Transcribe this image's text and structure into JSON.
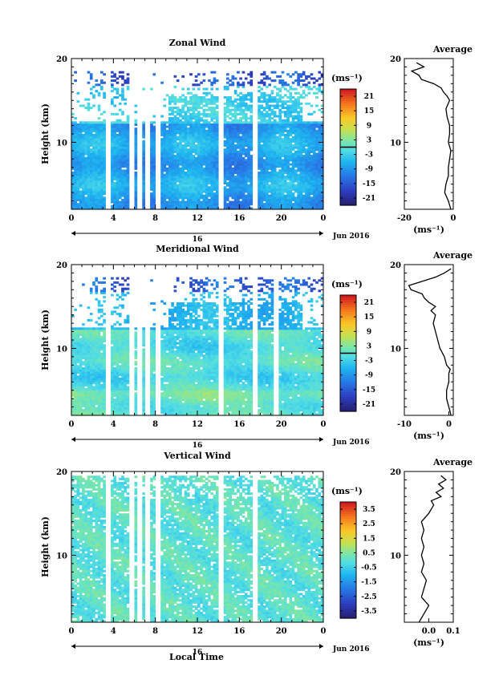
{
  "figure": {
    "x_label": "Local Time",
    "date_label": "Jun 2016",
    "date_day": "16",
    "unit_label": "(ms⁻¹)",
    "average_title": "Average",
    "average_unit": "(ms⁻¹)"
  },
  "chart_data": [
    {
      "type": "heatmap",
      "id": "zonal",
      "title": "Zonal Wind",
      "ylabel": "Height (km)",
      "x_ticks": [
        "0",
        "4",
        "8",
        "12",
        "16",
        "20",
        "0"
      ],
      "y_ticks": [
        "20",
        "10"
      ],
      "xlim": [
        0,
        24
      ],
      "ylim": [
        2,
        20
      ],
      "data_top_km": 18.5,
      "data_bottom_km": 2,
      "gaps_hours": [
        3.4,
        5.7,
        6.6,
        7.3,
        8.3,
        14.3,
        17.6
      ],
      "colorbar": {
        "min": -24,
        "max": 24,
        "tick_values": [
          21,
          15,
          9,
          3,
          -3,
          -9,
          -15,
          -21
        ],
        "tick_labels": [
          "21",
          "15",
          "9",
          "3",
          "-3",
          "-9",
          "-15",
          "-21"
        ],
        "zero_line": 0
      },
      "profile": {
        "xlim": [
          -20,
          0
        ],
        "x_tick_values": [
          -20,
          0
        ],
        "x_tick_labels": [
          "-20",
          "0"
        ],
        "y_ticks": [
          "20",
          "10"
        ],
        "height_km": [
          2.0,
          3.0,
          4.0,
          5.0,
          6.0,
          7.0,
          8.0,
          9.0,
          10.0,
          11.0,
          12.0,
          13.0,
          14.0,
          15.0,
          15.5,
          16.0,
          16.5,
          17.0,
          17.5,
          18.0,
          18.5,
          19.0,
          19.5
        ],
        "values": [
          -1.0,
          -2.0,
          -3.5,
          -3.0,
          -2.0,
          -2.0,
          -1.5,
          -1.0,
          -2.0,
          -1.5,
          -1.5,
          -2.5,
          -3.0,
          -1.5,
          -2.5,
          -4.0,
          -5.0,
          -8.0,
          -13.0,
          -14.0,
          -17.0,
          -12.0,
          -15.0
        ]
      }
    },
    {
      "type": "heatmap",
      "id": "meridional",
      "title": "Meridional Wind",
      "ylabel": "Height (km)",
      "x_ticks": [
        "0",
        "4",
        "8",
        "12",
        "16",
        "20",
        "0"
      ],
      "y_ticks": [
        "20",
        "10"
      ],
      "xlim": [
        0,
        24
      ],
      "ylim": [
        2,
        20
      ],
      "data_top_km": 18.5,
      "data_bottom_km": 2,
      "gaps_hours": [
        3.4,
        5.7,
        6.6,
        7.3,
        8.3,
        14.3,
        17.6,
        19.4
      ],
      "colorbar": {
        "min": -24,
        "max": 24,
        "tick_values": [
          21,
          15,
          9,
          3,
          -3,
          -9,
          -15,
          -21
        ],
        "tick_labels": [
          "21",
          "15",
          "9",
          "3",
          "-3",
          "-9",
          "-15",
          "-21"
        ],
        "zero_line": 0
      },
      "profile": {
        "xlim": [
          -10,
          1
        ],
        "x_tick_values": [
          -10,
          0
        ],
        "x_tick_labels": [
          "-10",
          "0"
        ],
        "y_ticks": [
          "20",
          "10"
        ],
        "height_km": [
          2.0,
          3.0,
          4.0,
          5.0,
          6.0,
          7.0,
          7.5,
          8.0,
          9.0,
          10.0,
          11.0,
          12.0,
          13.0,
          14.0,
          14.5,
          15.0,
          15.5,
          16.0,
          16.5,
          17.0,
          17.5,
          18.0,
          18.5,
          19.0,
          19.5
        ],
        "values": [
          0.5,
          0.0,
          -0.5,
          -0.5,
          0.0,
          0.0,
          0.3,
          -0.5,
          -1.0,
          -2.0,
          -2.5,
          -3.0,
          -3.5,
          -3.0,
          -4.0,
          -3.0,
          -4.5,
          -5.5,
          -6.0,
          -8.5,
          -9.0,
          -6.0,
          -3.0,
          -1.0,
          0.5
        ]
      }
    },
    {
      "type": "heatmap",
      "id": "vertical",
      "title": "Vertical Wind",
      "ylabel": "Height (km)",
      "x_ticks": [
        "0",
        "4",
        "8",
        "12",
        "16",
        "20",
        "0"
      ],
      "y_ticks": [
        "20",
        "10"
      ],
      "xlim": [
        0,
        24
      ],
      "ylim": [
        2,
        20
      ],
      "data_top_km": 19.5,
      "data_bottom_km": 2,
      "gaps_hours": [
        3.4,
        5.7,
        6.6,
        7.3,
        8.3,
        14.3,
        17.6
      ],
      "colorbar": {
        "min": -4,
        "max": 4,
        "tick_values": [
          3.5,
          2.5,
          1.5,
          0.5,
          -0.5,
          -1.5,
          -2.5,
          -3.5
        ],
        "tick_labels": [
          "3.5",
          "2.5",
          "1.5",
          "0.5",
          "-0.5",
          "-1.5",
          "-2.5",
          "-3.5"
        ],
        "zero_line": null
      },
      "profile": {
        "xlim": [
          -0.1,
          0.1
        ],
        "x_tick_values": [
          0.0,
          0.1
        ],
        "x_tick_labels": [
          "0.0",
          "0.1"
        ],
        "y_ticks": [
          "20",
          "10"
        ],
        "height_km": [
          2.0,
          3.0,
          4.0,
          5.0,
          6.0,
          7.0,
          8.0,
          9.0,
          10.0,
          11.0,
          12.0,
          13.0,
          14.0,
          15.0,
          16.0,
          16.5,
          17.0,
          17.5,
          18.0,
          18.5,
          19.0,
          19.5
        ],
        "values": [
          -0.04,
          -0.02,
          0.0,
          -0.03,
          -0.02,
          -0.01,
          -0.03,
          -0.02,
          -0.03,
          -0.02,
          -0.03,
          -0.02,
          -0.03,
          0.0,
          0.02,
          0.01,
          0.05,
          0.03,
          0.06,
          0.04,
          0.07,
          0.05
        ]
      }
    }
  ]
}
